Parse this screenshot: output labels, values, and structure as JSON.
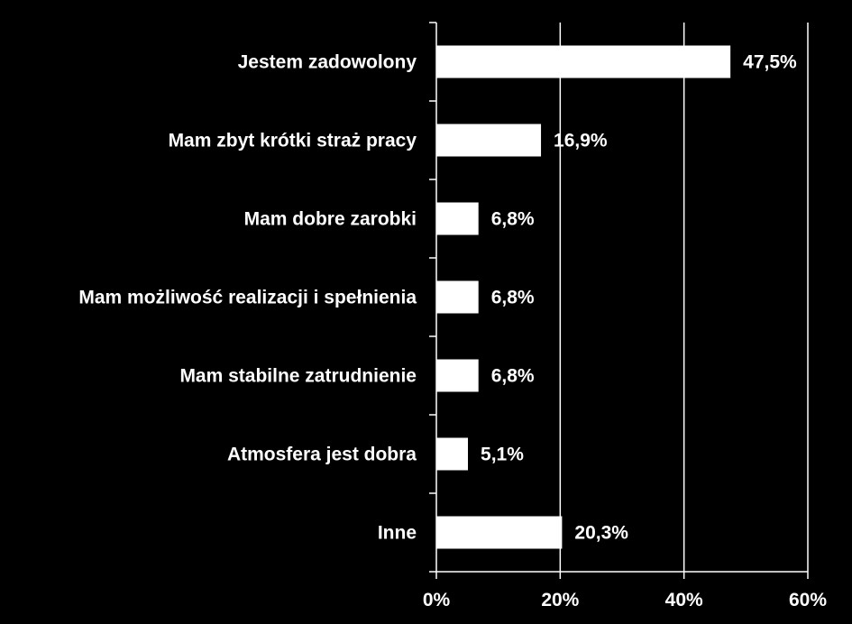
{
  "chart_data": {
    "type": "bar",
    "orientation": "horizontal",
    "categories": [
      "Jestem zadowolony",
      "Mam zbyt krótki straż pracy",
      "Mam dobre zarobki",
      "Mam możliwość realizacji i spełnienia",
      "Mam stabilne zatrudnienie",
      "Atmosfera jest dobra",
      "Inne"
    ],
    "values": [
      47.5,
      16.9,
      6.8,
      6.8,
      6.8,
      5.1,
      20.3
    ],
    "value_labels": [
      "47,5%",
      "16,9%",
      "6,8%",
      "6,8%",
      "6,8%",
      "5,1%",
      "20,3%"
    ],
    "xlim": [
      0,
      60
    ],
    "xticks": [
      0,
      20,
      40,
      60
    ],
    "xtick_labels": [
      "0%",
      "20%",
      "40%",
      "60%"
    ],
    "grid": "vertical",
    "legend": "none",
    "title": "",
    "xlabel": "",
    "ylabel": ""
  },
  "colors": {
    "background": "#000000",
    "bar_fill": "#ffffff",
    "text": "#ffffff",
    "grid": "#ffffff",
    "axis": "#ffffff"
  }
}
